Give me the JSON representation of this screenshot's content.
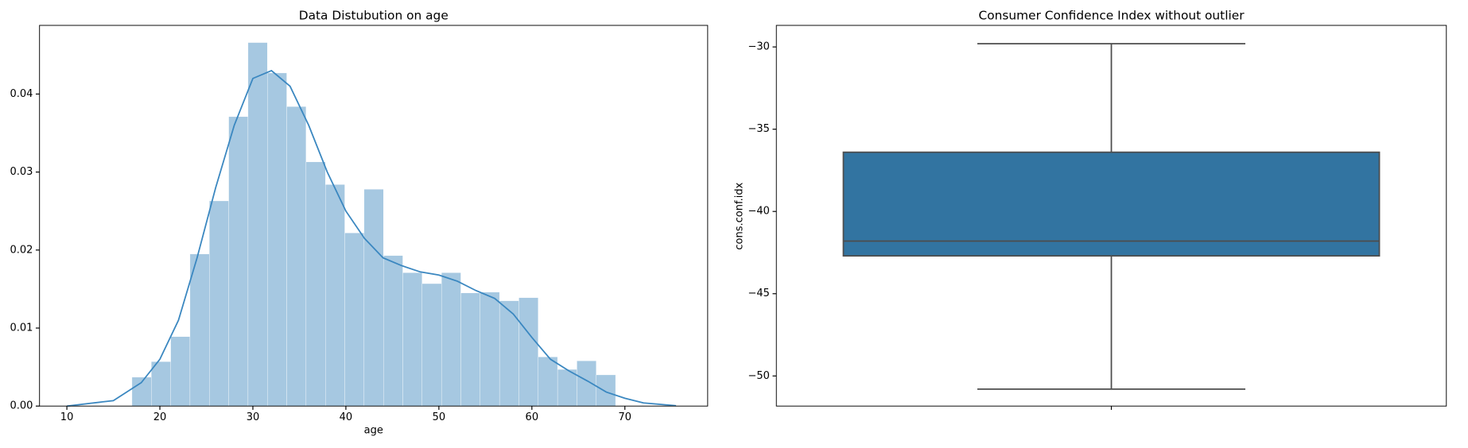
{
  "chart_data": [
    {
      "type": "histogram",
      "title": "Data Distubution on age",
      "xlabel": "age",
      "bins": [
        17,
        19.08,
        21.16,
        23.24,
        25.32,
        27.4,
        29.48,
        31.56,
        33.64,
        35.72,
        37.8,
        39.88,
        41.96,
        44.04,
        46.12,
        48.2,
        50.28,
        52.36,
        54.44,
        56.52,
        58.6,
        60.68,
        62.76,
        64.84,
        66.92,
        69
      ],
      "values": [
        0.0037,
        0.0057,
        0.0089,
        0.0195,
        0.0263,
        0.0371,
        0.0466,
        0.0427,
        0.0384,
        0.0313,
        0.0284,
        0.0222,
        0.0278,
        0.0193,
        0.0171,
        0.0157,
        0.0171,
        0.0145,
        0.0146,
        0.0135,
        0.0139,
        0.0063,
        0.0047,
        0.0058,
        0.004
      ],
      "color": "#a6c8e1",
      "kde": {
        "color": "#3a87c0",
        "x": [
          10,
          15,
          18,
          20,
          22,
          24,
          26,
          28,
          30,
          32,
          34,
          36,
          38,
          40,
          42,
          44,
          46,
          48,
          50,
          52,
          54,
          56,
          58,
          60,
          62,
          64,
          66,
          68,
          70,
          72,
          75.5
        ],
        "y": [
          0,
          0.0007,
          0.003,
          0.006,
          0.011,
          0.019,
          0.028,
          0.036,
          0.042,
          0.043,
          0.041,
          0.036,
          0.03,
          0.025,
          0.0215,
          0.019,
          0.018,
          0.0172,
          0.0168,
          0.016,
          0.0148,
          0.0138,
          0.0118,
          0.0088,
          0.006,
          0.0045,
          0.0032,
          0.0018,
          0.001,
          0.0004,
          5e-05
        ]
      },
      "xlim": [
        7.06,
        78.9
      ],
      "xticks": [
        10,
        20,
        30,
        40,
        50,
        60,
        70
      ],
      "ylim": [
        0,
        0.0488
      ],
      "yticks": [
        {
          "value": 0,
          "label": "0.00"
        },
        {
          "value": 0.01,
          "label": "0.01"
        },
        {
          "value": 0.02,
          "label": "0.02"
        },
        {
          "value": 0.03,
          "label": "0.03"
        },
        {
          "value": 0.04,
          "label": "0.04"
        }
      ]
    },
    {
      "type": "box",
      "title": "Consumer Confidence Index without outlier",
      "ylabel": "cons.conf.idx",
      "categories": [
        null
      ],
      "color": "#3274a1",
      "whislo": -50.8,
      "q1": -42.7,
      "med": -41.8,
      "q3": -36.4,
      "whishi": -29.8,
      "ylim": [
        -51.83,
        -28.69
      ],
      "yticks": [
        {
          "value": -30,
          "label": "−30"
        },
        {
          "value": -35,
          "label": "−35"
        },
        {
          "value": -40,
          "label": "−40"
        },
        {
          "value": -45,
          "label": "−45"
        },
        {
          "value": -50,
          "label": "−50"
        }
      ]
    }
  ]
}
